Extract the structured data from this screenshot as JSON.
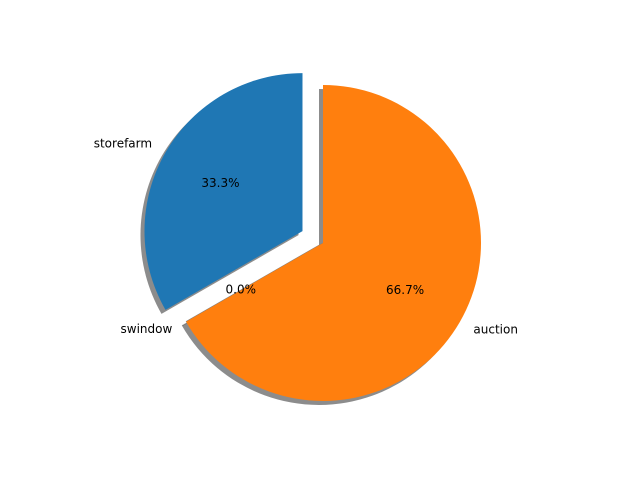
{
  "chart_data": {
    "type": "pie",
    "title": "",
    "labels": [
      "storefarm",
      "swindow",
      "auction"
    ],
    "values": [
      33.3,
      0.0,
      66.7
    ],
    "percent_labels": [
      "33.3%",
      "0.0%",
      "66.7%"
    ],
    "colors": [
      "#1f77b4",
      "#7f7f7f",
      "#ff7f0e"
    ],
    "start_angle_deg": 90,
    "direction": "counterclockwise",
    "exploded": [
      true,
      false,
      false
    ],
    "shadow": true,
    "legend": false
  }
}
